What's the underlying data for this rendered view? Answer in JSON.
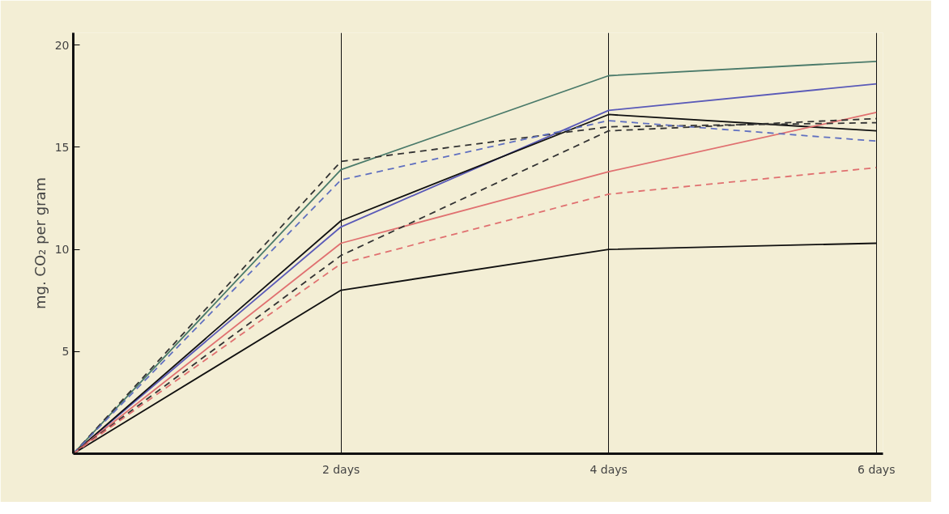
{
  "chart_data": {
    "type": "line",
    "ylabel": "mg. CO₂ per gram",
    "x": [
      0,
      2,
      4,
      6
    ],
    "xlim": [
      0,
      6.05
    ],
    "ylim": [
      0,
      20.6
    ],
    "xticks": [
      {
        "value": 2,
        "label": "2 days"
      },
      {
        "value": 4,
        "label": "4 days"
      },
      {
        "value": 6,
        "label": "6 days"
      }
    ],
    "yticks": [
      5,
      10,
      15,
      20
    ],
    "grid": "x",
    "line_style": "solid",
    "marker": "none",
    "series": [
      {
        "color": "#4a7a6a",
        "values": [
          0,
          13.9,
          18.5,
          19.2
        ]
      },
      {
        "color": "#5a5ab8",
        "values": [
          0,
          11.1,
          16.8,
          18.1
        ]
      },
      {
        "color": "#111111",
        "values": [
          0,
          11.4,
          16.6,
          15.8
        ]
      },
      {
        "color": "#e07070",
        "values": [
          0,
          10.3,
          13.8,
          16.7
        ]
      },
      {
        "color": "#111111",
        "values": [
          0,
          8.0,
          10.0,
          10.3
        ]
      },
      {
        "color": "#333333",
        "line_style": "dashed",
        "values": [
          0,
          14.3,
          16.0,
          16.2
        ]
      },
      {
        "color": "#6070c0",
        "line_style": "dashed",
        "values": [
          0,
          13.4,
          16.3,
          15.3
        ]
      },
      {
        "color": "#333333",
        "line_style": "dashed",
        "values": [
          0,
          9.7,
          15.8,
          16.4
        ]
      },
      {
        "color": "#e07070",
        "line_style": "dashed",
        "values": [
          0,
          9.3,
          12.7,
          14.0
        ]
      }
    ]
  }
}
